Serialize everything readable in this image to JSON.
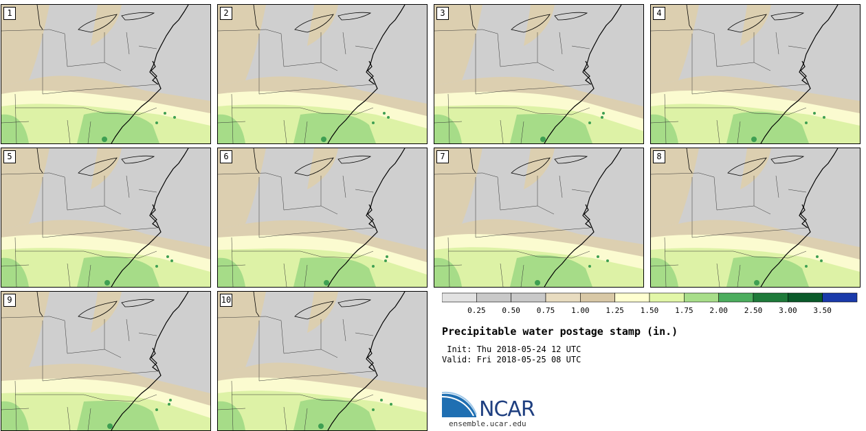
{
  "members": [
    "1",
    "2",
    "3",
    "4",
    "5",
    "6",
    "7",
    "8",
    "9",
    "10"
  ],
  "title": "Precipitable water postage stamp (in.)",
  "init_line": " Init: Thu 2018-05-24 12 UTC",
  "valid_line": "Valid: Fri 2018-05-25 08 UTC",
  "colorbar": {
    "ticks": [
      "0.25",
      "0.50",
      "0.75",
      "1.00",
      "1.25",
      "1.50",
      "1.75",
      "2.00",
      "2.50",
      "3.00",
      "3.50"
    ],
    "colors": [
      "#e2e2e2",
      "#c9c9c9",
      "#c9c9c9",
      "#e8dcc0",
      "#d8c8a6",
      "#ffffd0",
      "#e2f7a8",
      "#a8de8a",
      "#4cad5e",
      "#1e7a3a",
      "#0a5a2a",
      "#1a3aaa"
    ]
  },
  "map_colors": {
    "land_gray": "#cfcfcf",
    "tan": "#dccfb0",
    "pale_yellow": "#fbfbd0",
    "light_green": "#ddf2a6",
    "green": "#a6dc88",
    "dark_green": "#3e9f52"
  },
  "logo": {
    "name": "NCAR",
    "url": "ensemble.ucar.edu"
  }
}
